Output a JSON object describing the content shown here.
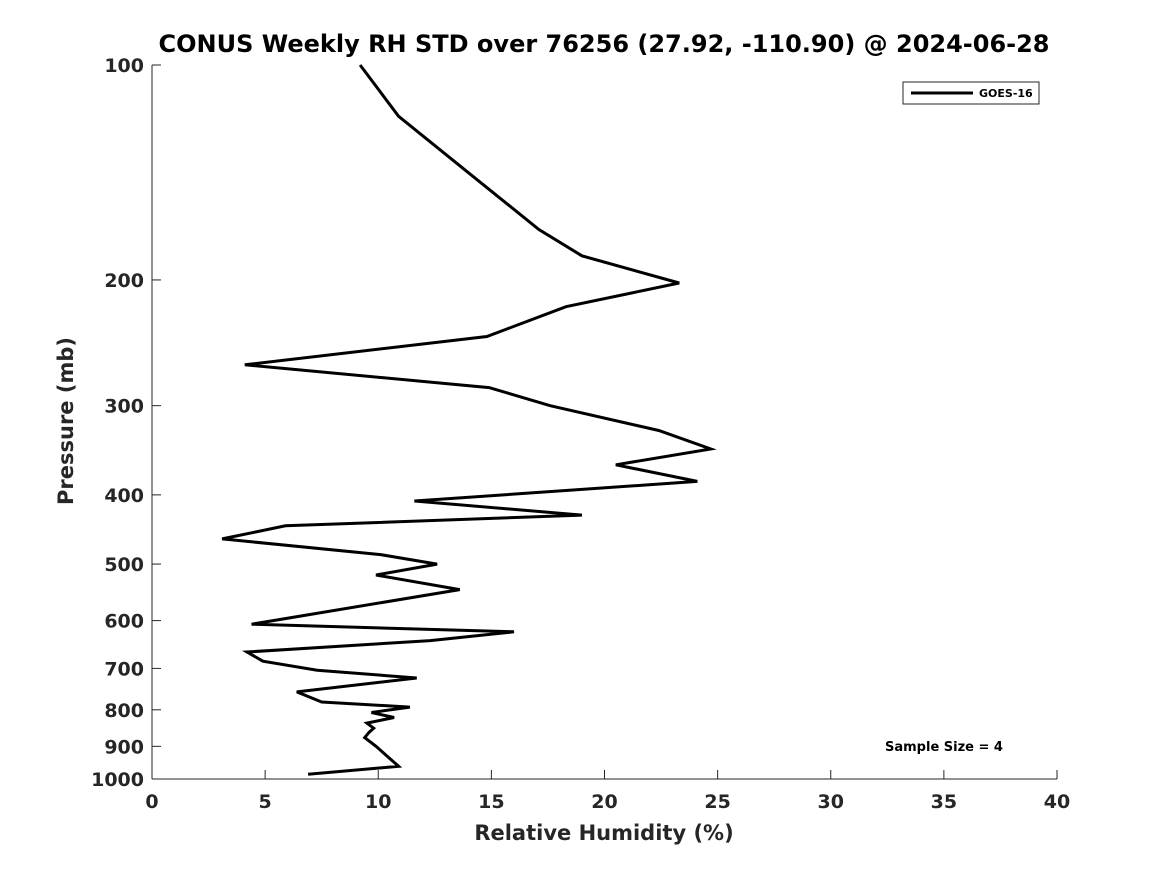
{
  "chart_data": {
    "type": "line",
    "title": "CONUS Weekly RH STD over 76256 (27.92, -110.90) @ 2024-06-28",
    "xlabel": "Relative Humidity (%)",
    "ylabel": "Pressure (mb)",
    "xlim": [
      0,
      40
    ],
    "ylim": [
      1000,
      100
    ],
    "yscale": "log",
    "y_reversed": true,
    "xticks": [
      0,
      5,
      10,
      15,
      20,
      25,
      30,
      35,
      40
    ],
    "yticks": [
      100,
      200,
      300,
      400,
      500,
      600,
      700,
      800,
      900,
      1000
    ],
    "grid": false,
    "legend_position": "top-right",
    "annotation": "Sample Size = 4",
    "series": [
      {
        "name": "GOES-16",
        "color": "#000000",
        "points": [
          [
            9.2,
            100
          ],
          [
            10.9,
            118
          ],
          [
            13.8,
            140
          ],
          [
            17.1,
            170
          ],
          [
            19.0,
            185
          ],
          [
            23.3,
            202
          ],
          [
            18.3,
            218
          ],
          [
            14.8,
            240
          ],
          [
            4.1,
            263
          ],
          [
            14.9,
            283
          ],
          [
            17.6,
            300
          ],
          [
            22.4,
            325
          ],
          [
            24.7,
            345
          ],
          [
            20.5,
            363
          ],
          [
            24.1,
            383
          ],
          [
            11.6,
            408
          ],
          [
            19.0,
            427
          ],
          [
            5.9,
            442
          ],
          [
            3.1,
            461
          ],
          [
            10.1,
            485
          ],
          [
            12.6,
            500
          ],
          [
            9.9,
            518
          ],
          [
            13.6,
            543
          ],
          [
            4.4,
            607
          ],
          [
            16.0,
            622
          ],
          [
            12.3,
            640
          ],
          [
            4.2,
            664
          ],
          [
            4.9,
            684
          ],
          [
            7.3,
            704
          ],
          [
            11.7,
            722
          ],
          [
            6.4,
            755
          ],
          [
            7.5,
            780
          ],
          [
            11.4,
            793
          ],
          [
            9.7,
            807
          ],
          [
            10.7,
            820
          ],
          [
            9.5,
            835
          ],
          [
            9.8,
            849
          ],
          [
            9.6,
            860
          ],
          [
            9.4,
            875
          ],
          [
            9.9,
            900
          ],
          [
            10.9,
            960
          ],
          [
            6.9,
            985
          ]
        ]
      }
    ]
  }
}
